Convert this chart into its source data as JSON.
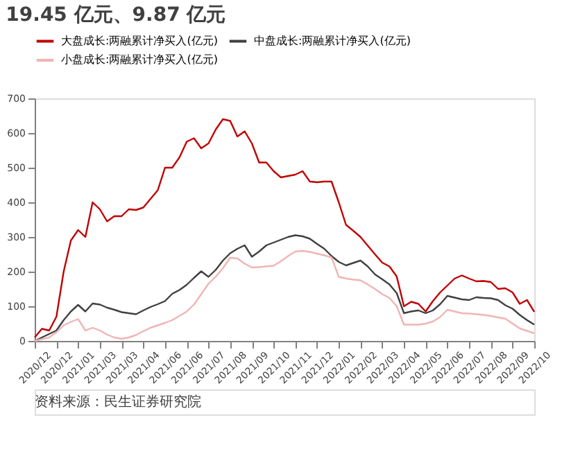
{
  "chart_data": {
    "type": "line",
    "title": "19.45 亿元、9.87 亿元",
    "categories": [
      "2020/12",
      null,
      null,
      "2020/12",
      null,
      null,
      "2021/01",
      null,
      null,
      "2021/03",
      null,
      null,
      "2021/03",
      null,
      null,
      "2021/04",
      null,
      null,
      "2021/06",
      null,
      null,
      "2021/06",
      null,
      null,
      "2021/07",
      null,
      null,
      "2021/08",
      null,
      null,
      "2021/09",
      null,
      null,
      "2021/10",
      null,
      null,
      "2021/11",
      null,
      null,
      "2021/12",
      null,
      null,
      "2022/01",
      null,
      null,
      "2022/02",
      null,
      null,
      "2022/03",
      null,
      null,
      "2022/04",
      null,
      null,
      "2022/05",
      null,
      null,
      "2022/06",
      null,
      null,
      "2022/07",
      null,
      null,
      "2022/08",
      null,
      null,
      "2022/09",
      null,
      null,
      "2022/10"
    ],
    "ylim": [
      0,
      700
    ],
    "yticks": [
      0,
      100,
      200,
      300,
      400,
      500,
      600,
      700
    ],
    "grid": false,
    "legend": "top",
    "marker": "none",
    "line_style": "solid",
    "series": [
      {
        "name": "大盘成长:两融累计净买入(亿元)",
        "color": "#c00000",
        "values": [
          10,
          35,
          30,
          70,
          200,
          290,
          320,
          300,
          400,
          380,
          345,
          360,
          360,
          380,
          378,
          385,
          410,
          435,
          500,
          500,
          530,
          575,
          585,
          556,
          570,
          610,
          640,
          635,
          590,
          605,
          570,
          515,
          515,
          490,
          472,
          476,
          480,
          490,
          460,
          458,
          460,
          460,
          400,
          335,
          318,
          300,
          275,
          250,
          226,
          215,
          186,
          100,
          113,
          107,
          85,
          115,
          140,
          160,
          180,
          189,
          180,
          172,
          173,
          170,
          150,
          152,
          140,
          107,
          118,
          84
        ]
      },
      {
        "name": "中盘成长:两融累计净买入(亿元)",
        "color": "#404040",
        "values": [
          0,
          10,
          20,
          30,
          60,
          85,
          104,
          85,
          108,
          105,
          96,
          90,
          83,
          80,
          77,
          88,
          98,
          106,
          115,
          136,
          147,
          162,
          182,
          201,
          185,
          205,
          232,
          253,
          266,
          276,
          243,
          258,
          276,
          284,
          292,
          300,
          305,
          302,
          295,
          280,
          266,
          245,
          228,
          218,
          225,
          232,
          215,
          192,
          178,
          163,
          138,
          80,
          85,
          88,
          80,
          88,
          106,
          130,
          125,
          120,
          118,
          126,
          124,
          123,
          118,
          103,
          93,
          75,
          60,
          47
        ]
      },
      {
        "name": "小盘成长:两融累计净买入(亿元)",
        "color": "#f0b4b4",
        "values": [
          0,
          5,
          10,
          25,
          45,
          55,
          63,
          30,
          38,
          30,
          18,
          10,
          6,
          10,
          17,
          28,
          38,
          45,
          52,
          60,
          72,
          85,
          105,
          135,
          165,
          185,
          210,
          240,
          238,
          223,
          212,
          213,
          215,
          217,
          230,
          245,
          258,
          260,
          257,
          252,
          247,
          241,
          185,
          180,
          177,
          175,
          163,
          150,
          135,
          124,
          100,
          47,
          47,
          47,
          50,
          56,
          69,
          90,
          85,
          80,
          79,
          77,
          75,
          72,
          68,
          64,
          50,
          36,
          29,
          22
        ]
      }
    ],
    "annotations": [
      "资料来源：民生证券研究院"
    ]
  }
}
